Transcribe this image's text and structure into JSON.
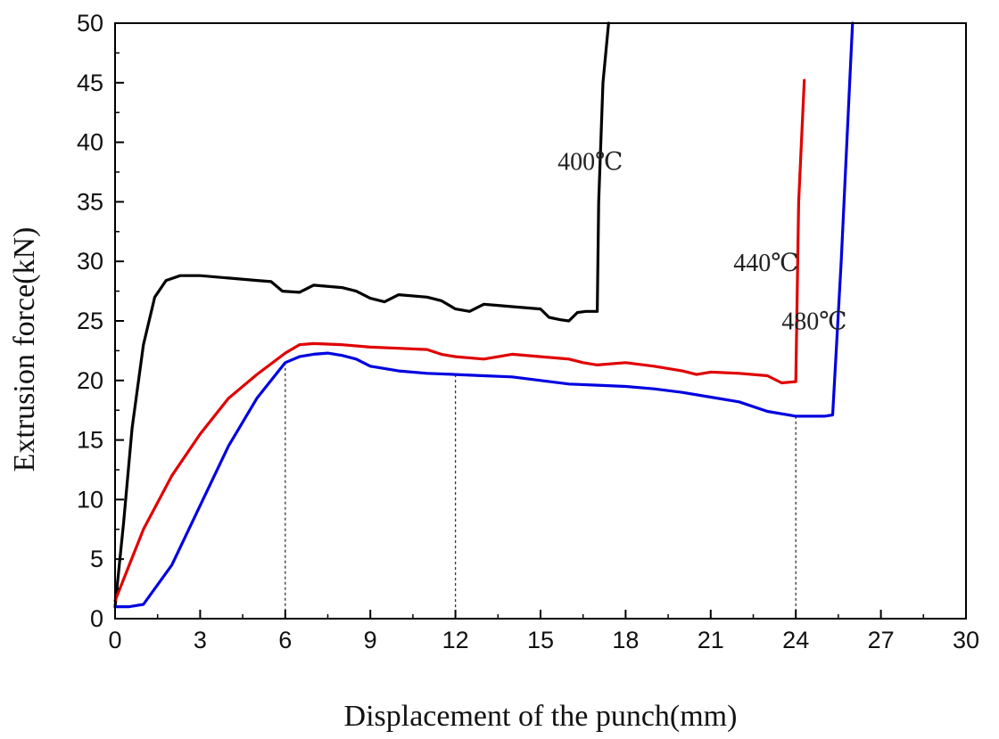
{
  "chart_data": {
    "type": "line",
    "xlabel": "Displacement of the punch(mm)",
    "ylabel": "Extrusion force(kN)",
    "xlim": [
      0,
      30
    ],
    "ylim": [
      0,
      50
    ],
    "x_ticks": [
      0,
      3,
      6,
      9,
      12,
      15,
      18,
      21,
      24,
      27,
      30
    ],
    "y_ticks": [
      0,
      5,
      10,
      15,
      20,
      25,
      30,
      35,
      40,
      45,
      50
    ],
    "grid": false,
    "legend": "none",
    "series": [
      {
        "name": "400℃",
        "color": "#000000",
        "x": [
          0,
          0.3,
          0.6,
          1.0,
          1.4,
          1.8,
          2.3,
          3.0,
          4.0,
          5.0,
          5.5,
          5.9,
          6.5,
          7.0,
          8.0,
          8.5,
          9.0,
          9.5,
          10.0,
          11.0,
          11.5,
          12.0,
          12.5,
          13.0,
          13.5,
          14.0,
          15.0,
          15.3,
          15.7,
          16.0,
          16.3,
          16.6,
          17.0,
          17.05,
          17.2,
          17.4
        ],
        "y": [
          1.0,
          8.0,
          16.0,
          23.0,
          27.0,
          28.4,
          28.8,
          28.8,
          28.6,
          28.4,
          28.3,
          27.5,
          27.4,
          28.0,
          27.8,
          27.5,
          26.9,
          26.6,
          27.2,
          27.0,
          26.7,
          26.0,
          25.8,
          26.4,
          26.3,
          26.2,
          26.0,
          25.3,
          25.1,
          25.0,
          25.7,
          25.8,
          25.8,
          35.0,
          45.0,
          50.0
        ]
      },
      {
        "name": "440℃",
        "color": "#e00000",
        "x": [
          0,
          0.5,
          1.0,
          2.0,
          3.0,
          4.0,
          5.0,
          6.0,
          6.5,
          7.0,
          8.0,
          9.0,
          10.0,
          11.0,
          11.5,
          12.0,
          13.0,
          14.0,
          15.0,
          16.0,
          16.5,
          17.0,
          18.0,
          19.0,
          20.0,
          20.5,
          21.0,
          22.0,
          23.0,
          23.5,
          24.0,
          24.1,
          24.3
        ],
        "y": [
          1.5,
          4.5,
          7.5,
          12.0,
          15.5,
          18.5,
          20.5,
          22.3,
          23.0,
          23.1,
          23.0,
          22.8,
          22.7,
          22.6,
          22.2,
          22.0,
          21.8,
          22.2,
          22.0,
          21.8,
          21.5,
          21.3,
          21.5,
          21.2,
          20.8,
          20.5,
          20.7,
          20.6,
          20.4,
          19.8,
          19.9,
          35.0,
          45.2
        ]
      },
      {
        "name": "480℃",
        "color": "#0000e0",
        "x": [
          0,
          0.5,
          1.0,
          2.0,
          3.0,
          4.0,
          5.0,
          6.0,
          6.5,
          7.0,
          7.5,
          8.0,
          8.5,
          9.0,
          10.0,
          11.0,
          12.0,
          13.0,
          14.0,
          15.0,
          16.0,
          17.0,
          18.0,
          19.0,
          20.0,
          21.0,
          22.0,
          23.0,
          24.0,
          25.0,
          25.3,
          25.6,
          25.9,
          26.0
        ],
        "y": [
          1.0,
          1.0,
          1.2,
          4.5,
          9.5,
          14.5,
          18.5,
          21.5,
          22.0,
          22.2,
          22.3,
          22.1,
          21.8,
          21.2,
          20.8,
          20.6,
          20.5,
          20.4,
          20.3,
          20.0,
          19.7,
          19.6,
          19.5,
          19.3,
          19.0,
          18.6,
          18.2,
          17.4,
          17.0,
          17.0,
          17.1,
          30.0,
          45.0,
          50.0
        ]
      }
    ],
    "reference_lines_x": [
      6,
      12,
      24
    ],
    "annotations": [
      {
        "text": "400℃",
        "x": 15.6,
        "y": 37.7
      },
      {
        "text": "440℃",
        "x": 21.8,
        "y": 29.2
      },
      {
        "text": "480℃",
        "x": 23.5,
        "y": 24.3
      }
    ]
  }
}
